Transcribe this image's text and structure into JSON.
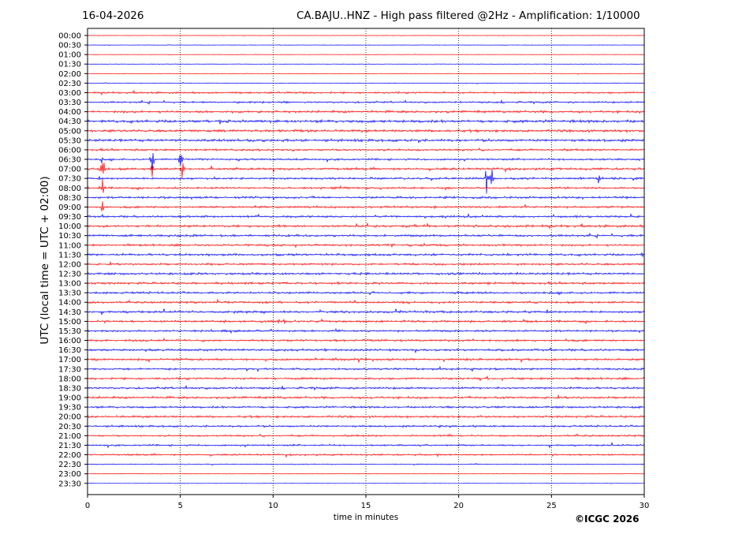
{
  "header": {
    "date": "16-04-2026",
    "title": "CA.BAJU..HNZ - High pass filtered @2Hz - Amplification: 1/10000"
  },
  "copyright": "©ICGC 2026",
  "chart_data": {
    "type": "line",
    "title": "CA.BAJU..HNZ - High pass filtered @2Hz - Amplification: 1/10000",
    "xlabel": "time in minutes",
    "ylabel": "UTC (local time = UTC + 02:00)",
    "xlim": [
      0,
      30
    ],
    "x_ticks": [
      0,
      5,
      10,
      15,
      20,
      25,
      30
    ],
    "x_gridlines": [
      5,
      10,
      15,
      20,
      25
    ],
    "grid": "vertical-dotted",
    "row_colors": [
      "#ff0000",
      "#0000ff"
    ],
    "rows": [
      "00:00",
      "00:30",
      "01:00",
      "01:30",
      "02:00",
      "02:30",
      "03:00",
      "03:30",
      "04:00",
      "04:30",
      "05:00",
      "05:30",
      "06:00",
      "06:30",
      "07:00",
      "07:30",
      "08:00",
      "08:30",
      "09:00",
      "09:30",
      "10:00",
      "10:30",
      "11:00",
      "11:30",
      "12:00",
      "12:30",
      "13:00",
      "13:30",
      "14:00",
      "14:30",
      "15:00",
      "15:30",
      "16:00",
      "16:30",
      "17:00",
      "17:30",
      "18:00",
      "18:30",
      "19:00",
      "19:30",
      "20:00",
      "20:30",
      "21:00",
      "21:30",
      "22:00",
      "22:30",
      "23:00",
      "23:30"
    ],
    "row_noise": [
      0.3,
      0.3,
      0.3,
      0.4,
      0.4,
      0.5,
      1.4,
      1.4,
      1.8,
      2.2,
      1.9,
      2.0,
      1.6,
      1.4,
      1.7,
      1.6,
      1.5,
      1.7,
      1.6,
      1.6,
      1.8,
      1.7,
      1.6,
      1.7,
      1.6,
      1.7,
      1.7,
      1.7,
      1.6,
      1.7,
      1.6,
      1.6,
      1.6,
      1.7,
      1.7,
      1.5,
      1.6,
      1.6,
      1.7,
      1.6,
      1.6,
      1.5,
      1.4,
      1.3,
      1.3,
      0.7,
      0.3,
      0.3
    ],
    "spikes": [
      {
        "row": "05:30",
        "t": 17.8,
        "amp": 7
      },
      {
        "row": "06:30",
        "t": 0.75,
        "amp": 6
      },
      {
        "row": "06:30",
        "t": 3.5,
        "amp": 20
      },
      {
        "row": "06:30",
        "t": 5.0,
        "amp": 18
      },
      {
        "row": "07:00",
        "t": 0.8,
        "amp": 30
      },
      {
        "row": "07:00",
        "t": 3.5,
        "amp": 14
      },
      {
        "row": "07:00",
        "t": 5.1,
        "amp": 16
      },
      {
        "row": "07:30",
        "t": 21.5,
        "amp": 20
      },
      {
        "row": "07:30",
        "t": 21.8,
        "amp": 14
      },
      {
        "row": "07:30",
        "t": 27.6,
        "amp": 18
      },
      {
        "row": "08:00",
        "t": 0.8,
        "amp": 20
      },
      {
        "row": "08:00",
        "t": 1.2,
        "amp": 2
      },
      {
        "row": "09:00",
        "t": 0.8,
        "amp": 10
      },
      {
        "row": "10:00",
        "t": 17.6,
        "amp": 5
      },
      {
        "row": "10:00",
        "t": 18.3,
        "amp": 4
      },
      {
        "row": "11:30",
        "t": 29.9,
        "amp": 4
      },
      {
        "row": "13:00",
        "t": 13.5,
        "amp": 4
      },
      {
        "row": "13:00",
        "t": 21.6,
        "amp": 3
      },
      {
        "row": "14:30",
        "t": 7.9,
        "amp": 3
      },
      {
        "row": "15:00",
        "t": 7.4,
        "amp": 3
      },
      {
        "row": "15:00",
        "t": 10.3,
        "amp": 6
      },
      {
        "row": "15:00",
        "t": 10.6,
        "amp": 5
      },
      {
        "row": "16:00",
        "t": 25.8,
        "amp": 3
      },
      {
        "row": "19:30",
        "t": 4.6,
        "amp": 3
      },
      {
        "row": "20:30",
        "t": 1.8,
        "amp": 3
      }
    ]
  }
}
